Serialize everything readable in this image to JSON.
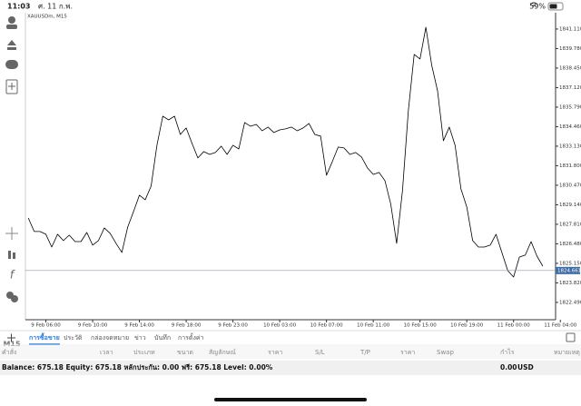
{
  "status_bar": {
    "time": "11:03",
    "date": "ศ. 11 ก.พ.",
    "battery": "59%"
  },
  "sidebar": {
    "timeframe": "M15"
  },
  "chart_data": {
    "type": "line",
    "title": "XAUUSDm, M15",
    "color": "#000000",
    "categories": [
      null,
      null,
      null,
      "9 Feb 06:00",
      null,
      null,
      null,
      null,
      null,
      null,
      null,
      "9 Feb 10:00",
      null,
      null,
      null,
      null,
      null,
      null,
      null,
      "9 Feb 14:00",
      null,
      null,
      null,
      null,
      null,
      null,
      null,
      "9 Feb 18:00",
      null,
      null,
      null,
      null,
      null,
      null,
      null,
      "9 Feb 23:00",
      null,
      null,
      null,
      null,
      null,
      null,
      null,
      "10 Feb 03:00",
      null,
      null,
      null,
      null,
      null,
      null,
      null,
      "10 Feb 07:00",
      null,
      null,
      null,
      null,
      null,
      null,
      null,
      "10 Feb 11:00",
      null,
      null,
      null,
      null,
      null,
      null,
      null,
      "10 Feb 15:00",
      null,
      null,
      null,
      null,
      null,
      null,
      null,
      "10 Feb 19:00",
      null,
      null,
      null,
      null,
      null,
      null,
      null,
      "11 Feb 00:00",
      null,
      null,
      null,
      null,
      null,
      null,
      null,
      "11 Feb 04:00"
    ],
    "values": [
      1828.24,
      1827.32,
      1827.32,
      1827.13,
      1826.26,
      1827.13,
      1826.7,
      1827.07,
      1826.63,
      1826.63,
      1827.25,
      1826.39,
      1826.7,
      1827.56,
      1827.19,
      1826.51,
      1825.89,
      1827.62,
      1828.68,
      1829.79,
      1829.48,
      1830.41,
      1833.19,
      1835.17,
      1834.92,
      1835.17,
      1833.93,
      1834.37,
      1833.32,
      1832.33,
      1832.76,
      1832.57,
      1832.7,
      1833.13,
      1832.57,
      1833.19,
      1832.94,
      1834.74,
      1834.49,
      1834.61,
      1834.18,
      1834.43,
      1834.06,
      1834.24,
      1834.31,
      1834.43,
      1834.18,
      1834.37,
      1834.68,
      1833.93,
      1833.81,
      1831.15,
      1832.08,
      1833.07,
      1833.01,
      1832.57,
      1832.7,
      1832.39,
      1831.65,
      1831.21,
      1831.34,
      1830.78,
      1829.17,
      1826.51,
      1830.1,
      1835.54,
      1839.38,
      1839.07,
      1841.23,
      1838.64,
      1836.9,
      1833.5,
      1834.43,
      1833.19,
      1830.22,
      1828.99,
      1826.7,
      1826.26,
      1826.26,
      1826.39,
      1827.13,
      1825.89,
      1824.66,
      1824.22,
      1825.58,
      1825.71,
      1826.63,
      1825.64,
      1824.96,
      null,
      null,
      null
    ],
    "ylim": [
      1821.31,
      1842.22
    ],
    "yticks": [
      {
        "value": 1841.11,
        "label": "1841.110"
      },
      {
        "value": 1839.78,
        "label": "1839.780"
      },
      {
        "value": 1838.45,
        "label": "1838.450"
      },
      {
        "value": 1837.12,
        "label": "1837.120"
      },
      {
        "value": 1835.79,
        "label": "1835.790"
      },
      {
        "value": 1834.46,
        "label": "1834.460"
      },
      {
        "value": 1833.13,
        "label": "1833.130"
      },
      {
        "value": 1831.8,
        "label": "1831.800"
      },
      {
        "value": 1830.47,
        "label": "1830.470"
      },
      {
        "value": 1829.14,
        "label": "1829.140"
      },
      {
        "value": 1827.81,
        "label": "1827.810"
      },
      {
        "value": 1826.48,
        "label": "1826.480"
      },
      {
        "value": 1825.15,
        "label": "1825.150"
      },
      {
        "value": 1823.82,
        "label": "1823.820"
      },
      {
        "value": 1822.49,
        "label": "1822.490"
      }
    ],
    "current_price": 1824.661
  },
  "tabs": [
    "การซื้อขาย",
    "ประวัติ",
    "กล่องจดหมาย",
    "ข่าว",
    "บันทึก",
    "การตั้งค่า"
  ],
  "active_tab": 0,
  "columns": [
    "คำสั่ง",
    "เวลา",
    "ประเภท",
    "ขนาด",
    "สัญลักษณ์",
    "ราคา",
    "S/L",
    "T/P",
    "ราคา",
    "Swap",
    "กำไร",
    "หมายเหตุ"
  ],
  "balance": {
    "summary": "Balance: 675.18 Equity: 675.18 หลักประกัน: 0.00 ฟรี: 675.18 Level: 0.00%",
    "total": "0.00",
    "currency": "USD"
  }
}
